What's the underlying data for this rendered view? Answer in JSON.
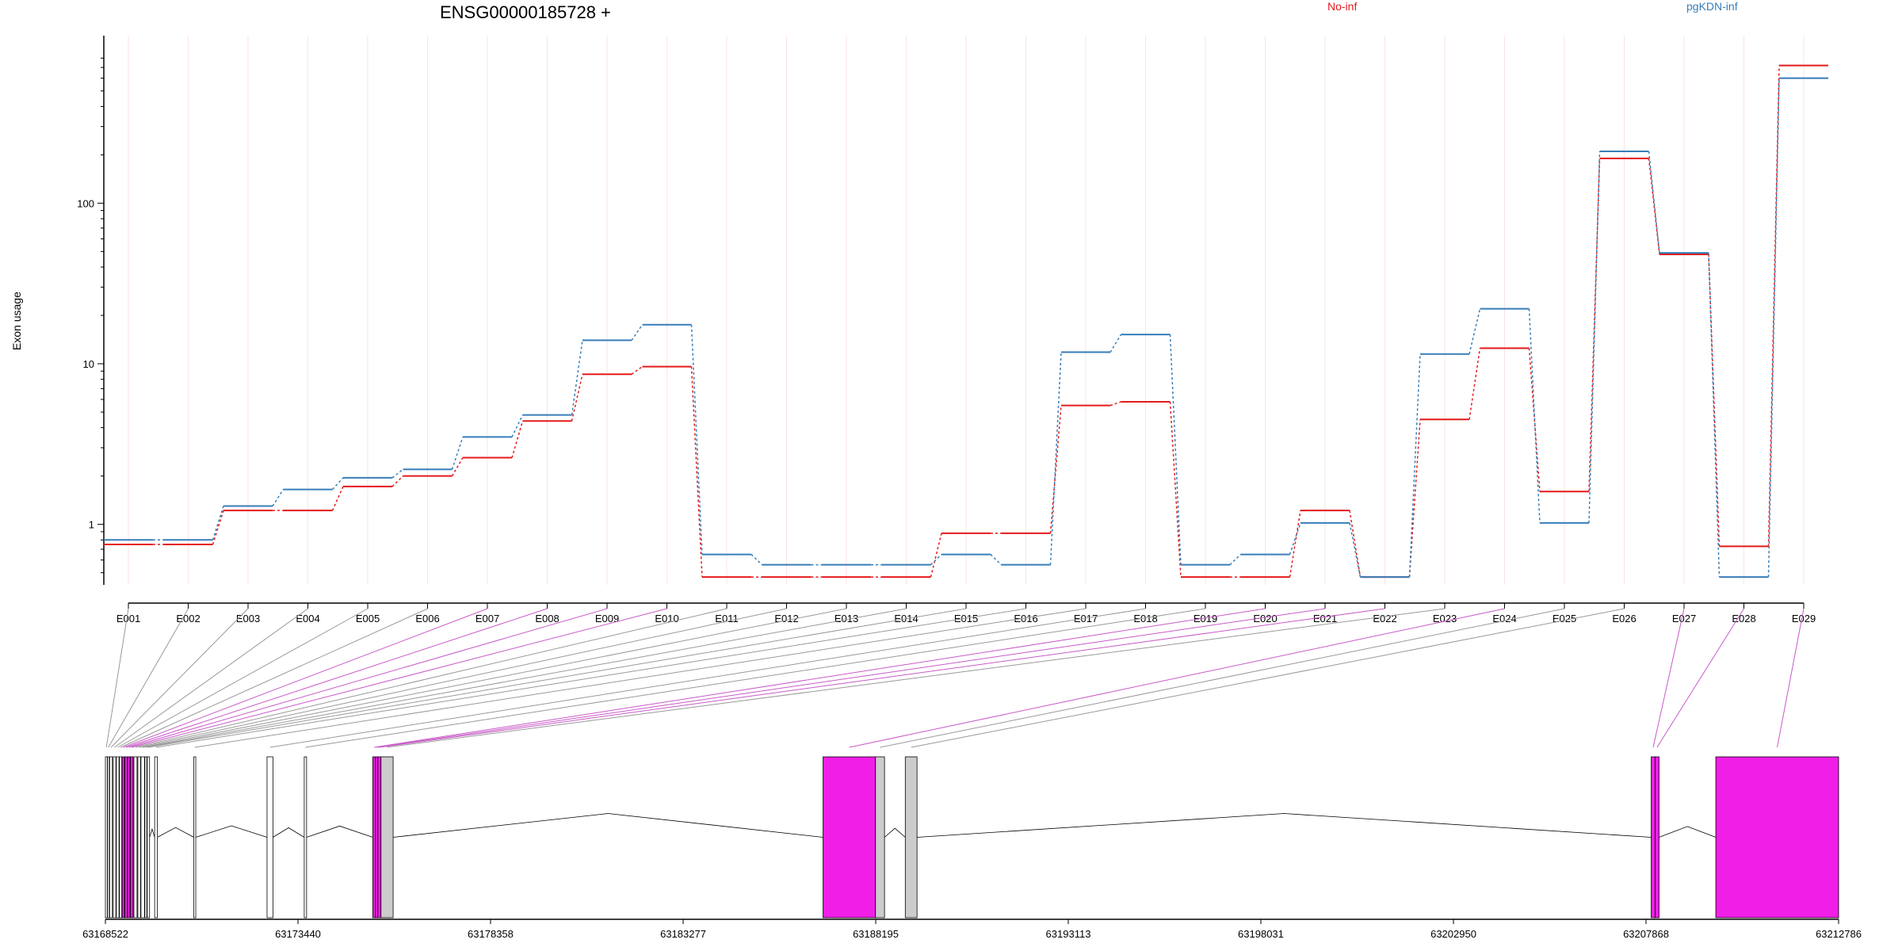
{
  "chart_data": {
    "type": "line",
    "title": "ENSG00000185728 +",
    "ylabel": "Exon usage",
    "yscale": "log",
    "ylim": [
      0.42,
      850
    ],
    "yticks": [
      1,
      10,
      100
    ],
    "yticklabels": [
      "1",
      "10",
      "100"
    ],
    "grid": "vertical lines at each exon",
    "legend_placement": "top-right",
    "colors": {
      "no_inf": "#e41a1c",
      "pgkdn_inf": "#377eb8",
      "exon_highlight": "#f01ee6",
      "exon_box": "#cccccc",
      "connector": "#888888"
    },
    "categories": [
      "E001",
      "E002",
      "E003",
      "E004",
      "E005",
      "E006",
      "E007",
      "E008",
      "E009",
      "E010",
      "E011",
      "E012",
      "E013",
      "E014",
      "E015",
      "E016",
      "E017",
      "E018",
      "E019",
      "E020",
      "E021",
      "E022",
      "E023",
      "E024",
      "E025",
      "E026",
      "E027",
      "E028",
      "E029"
    ],
    "series": [
      {
        "name": "No-inf",
        "color": "#e41a1c",
        "values": [
          0.75,
          0.75,
          1.22,
          1.22,
          1.72,
          2.0,
          2.6,
          4.4,
          8.6,
          9.6,
          0.47,
          0.47,
          0.47,
          0.47,
          0.88,
          0.88,
          5.5,
          5.8,
          0.47,
          0.47,
          1.22,
          0.47,
          4.5,
          12.5,
          1.6,
          190,
          48,
          0.73,
          720
        ]
      },
      {
        "name": "pgKDN-inf",
        "color": "#377eb8",
        "values": [
          0.8,
          0.8,
          1.3,
          1.65,
          1.95,
          2.2,
          3.5,
          4.8,
          14.0,
          17.5,
          0.65,
          0.56,
          0.56,
          0.56,
          0.65,
          0.56,
          11.8,
          15.2,
          0.56,
          0.65,
          1.02,
          0.47,
          11.5,
          22.0,
          1.02,
          210,
          49,
          0.47,
          600
        ]
      }
    ],
    "gene_model": {
      "xrange": [
        63168522,
        63212786
      ],
      "xticks": [
        63168522,
        63173440,
        63178358,
        63183277,
        63188195,
        63193113,
        63198031,
        63202950,
        63207868,
        63212786
      ],
      "xticklabels": [
        "63168522",
        "63173440",
        "63178358",
        "63183277",
        "63188195",
        "63193113",
        "63198031",
        "63202950",
        "63207868",
        "63212786"
      ],
      "exons": [
        {
          "id": "E001",
          "start": 63168522,
          "end": 63168570,
          "highlight": false
        },
        {
          "id": "E002",
          "start": 63168575,
          "end": 63168620,
          "highlight": false
        },
        {
          "id": "E003",
          "start": 63168630,
          "end": 63168700,
          "highlight": false
        },
        {
          "id": "E004",
          "start": 63168720,
          "end": 63168790,
          "highlight": false
        },
        {
          "id": "E005",
          "start": 63168800,
          "end": 63168870,
          "highlight": false
        },
        {
          "id": "E006",
          "start": 63168880,
          "end": 63168940,
          "highlight": false
        },
        {
          "id": "E007",
          "start": 63168950,
          "end": 63169010,
          "highlight": true
        },
        {
          "id": "E008",
          "start": 63169020,
          "end": 63169080,
          "highlight": true
        },
        {
          "id": "E009",
          "start": 63169090,
          "end": 63169150,
          "highlight": true
        },
        {
          "id": "E010",
          "start": 63169160,
          "end": 63169230,
          "highlight": true
        },
        {
          "id": "E011",
          "start": 63169250,
          "end": 63169330,
          "highlight": false
        },
        {
          "id": "E012",
          "start": 63169350,
          "end": 63169420,
          "highlight": false
        },
        {
          "id": "E013",
          "start": 63169430,
          "end": 63169520,
          "highlight": false
        },
        {
          "id": "E014",
          "start": 63169530,
          "end": 63169580,
          "highlight": false
        },
        {
          "id": "E015",
          "start": 63169590,
          "end": 63169650,
          "highlight": false
        },
        {
          "id": "E016",
          "start": 63169780,
          "end": 63169850,
          "highlight": false
        },
        {
          "id": "E017",
          "start": 63170780,
          "end": 63170830,
          "highlight": false
        },
        {
          "id": "E018",
          "start": 63172650,
          "end": 63172800,
          "highlight": false
        },
        {
          "id": "E019",
          "start": 63173600,
          "end": 63173660,
          "highlight": false
        },
        {
          "id": "E020",
          "start": 63175350,
          "end": 63175420,
          "highlight": true
        },
        {
          "id": "E021",
          "start": 63175420,
          "end": 63175480,
          "highlight": true
        },
        {
          "id": "E022",
          "start": 63175480,
          "end": 63175560,
          "highlight": true
        },
        {
          "id": "E023",
          "start": 63175560,
          "end": 63175870,
          "highlight": false
        },
        {
          "id": "E024",
          "start": 63186850,
          "end": 63188190,
          "highlight": true
        },
        {
          "id": "E025",
          "start": 63188190,
          "end": 63188420,
          "highlight": false
        },
        {
          "id": "E026",
          "start": 63188950,
          "end": 63189250,
          "highlight": false
        },
        {
          "id": "E027",
          "start": 63208000,
          "end": 63208100,
          "highlight": true
        },
        {
          "id": "E028",
          "start": 63208100,
          "end": 63208200,
          "highlight": true
        },
        {
          "id": "E029",
          "start": 63209650,
          "end": 63212786,
          "highlight": true
        }
      ]
    }
  }
}
